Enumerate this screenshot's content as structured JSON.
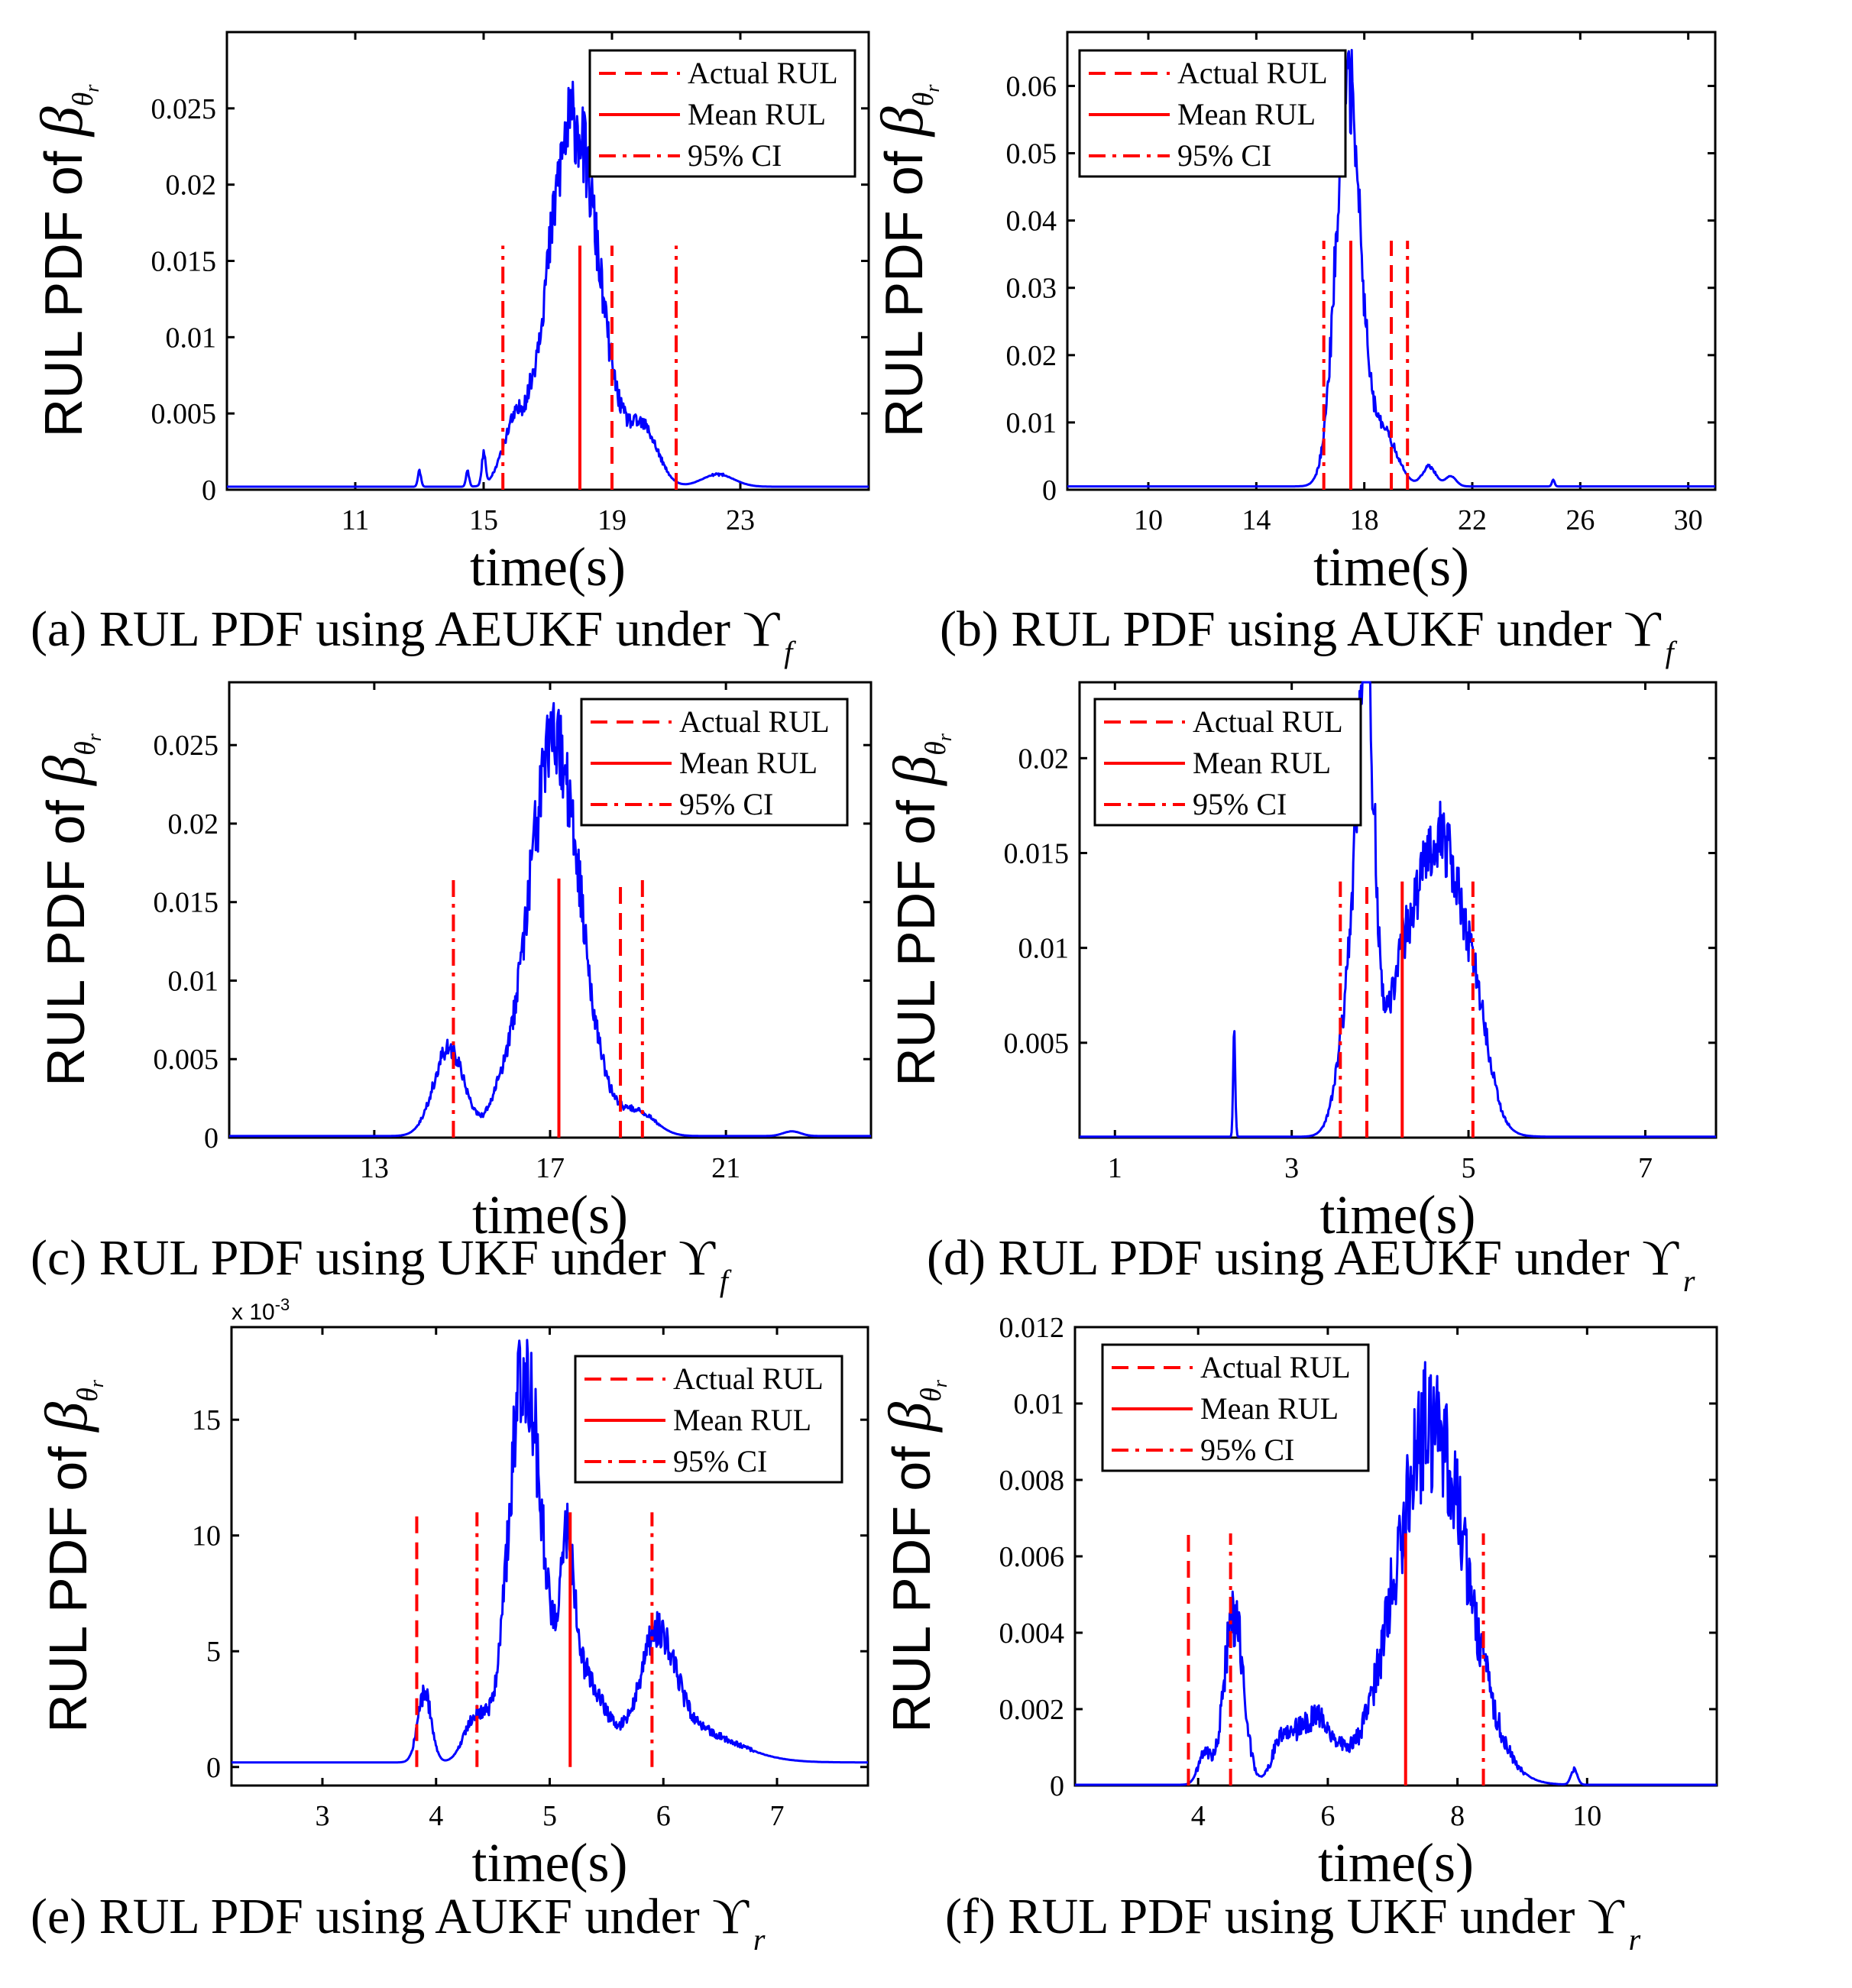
{
  "colors": {
    "pdf": "#0000ff",
    "rul": "#ff0000"
  },
  "legend": {
    "actual": "Actual RUL",
    "mean": "Mean RUL",
    "ci": "95% CI"
  },
  "chart_data": [
    {
      "type": "line",
      "id": "a",
      "caption": "(a) RUL PDF using AEUKF under ϒ",
      "caption_sub": "f",
      "xlabel": "time(s)",
      "ylabel": "RUL PDF of",
      "ylabel_symbol": "β",
      "ylabel_sub": "θ",
      "ylabel_subsub": "r",
      "xlim": [
        7,
        27
      ],
      "ylim": [
        0,
        0.03
      ],
      "xticks": [
        11,
        15,
        19,
        23
      ],
      "xtick_labels": [
        "11",
        "15",
        "19",
        "23"
      ],
      "yticks": [
        0,
        0.005,
        0.01,
        0.015,
        0.02,
        0.025
      ],
      "ytick_labels": [
        "0",
        "0.005",
        "0.01",
        "0.015",
        "0.02",
        "0.025"
      ],
      "multiplier": "",
      "vlines": {
        "actual": [
          19.0
        ],
        "mean": [
          18.0
        ],
        "ci": [
          15.6,
          21.0
        ],
        "height": 0.016
      },
      "pdf": {
        "start": 7,
        "end": 27,
        "baseline": 0.0002,
        "components": [
          [
            17.8,
            0.8,
            0.024
          ],
          [
            20.0,
            0.45,
            0.0035
          ],
          [
            15.9,
            0.35,
            0.003
          ],
          [
            22.3,
            0.5,
            0.0008
          ],
          [
            13.0,
            0.05,
            0.001
          ],
          [
            14.5,
            0.05,
            0.001
          ],
          [
            15.0,
            0.06,
            0.002
          ]
        ],
        "noise": 0.12,
        "seed": 11
      }
    },
    {
      "type": "line",
      "id": "b",
      "caption": "(b) RUL PDF using AUKF under ϒ",
      "caption_sub": "f",
      "xlabel": "time(s)",
      "ylabel": "RUL PDF of",
      "ylabel_symbol": "β",
      "ylabel_sub": "θ",
      "ylabel_subsub": "r",
      "xlim": [
        7,
        31
      ],
      "ylim": [
        0,
        0.068
      ],
      "xticks": [
        10,
        14,
        18,
        22,
        26,
        30
      ],
      "xtick_labels": [
        "10",
        "14",
        "18",
        "22",
        "26",
        "30"
      ],
      "yticks": [
        0,
        0.01,
        0.02,
        0.03,
        0.04,
        0.05,
        0.06
      ],
      "ytick_labels": [
        "0",
        "0.01",
        "0.02",
        "0.03",
        "0.04",
        "0.05",
        "0.06"
      ],
      "multiplier": "",
      "vlines": {
        "actual": [
          19.0
        ],
        "mean": [
          17.5
        ],
        "ci": [
          16.5,
          19.6
        ],
        "height": 0.037
      },
      "pdf": {
        "start": 7,
        "end": 31,
        "baseline": 0.0005,
        "components": [
          [
            17.4,
            0.45,
            0.06
          ],
          [
            18.7,
            0.5,
            0.008
          ],
          [
            20.4,
            0.25,
            0.003
          ],
          [
            21.2,
            0.2,
            0.0015
          ],
          [
            25.0,
            0.05,
            0.001
          ]
        ],
        "noise": 0.12,
        "seed": 22
      }
    },
    {
      "type": "line",
      "id": "c",
      "caption": "(c) RUL PDF using UKF under ϒ",
      "caption_sub": "f",
      "xlabel": "time(s)",
      "ylabel": "RUL PDF of",
      "ylabel_symbol": "β",
      "ylabel_sub": "θ",
      "ylabel_subsub": "r",
      "xlim": [
        9.7,
        24.3
      ],
      "ylim": [
        0,
        0.029
      ],
      "xticks": [
        13,
        17,
        21
      ],
      "xtick_labels": [
        "13",
        "17",
        "21"
      ],
      "yticks": [
        0,
        0.005,
        0.01,
        0.015,
        0.02,
        0.025
      ],
      "ytick_labels": [
        "0",
        "0.005",
        "0.01",
        "0.015",
        "0.02",
        "0.025"
      ],
      "multiplier": "",
      "vlines": {
        "actual": [
          18.6
        ],
        "mean": [
          17.2
        ],
        "ci": [
          14.8,
          19.1
        ],
        "height": 0.0165
      },
      "pdf": {
        "start": 9.7,
        "end": 24.3,
        "baseline": 0.0001,
        "components": [
          [
            17.1,
            0.6,
            0.025
          ],
          [
            14.7,
            0.35,
            0.0055
          ],
          [
            15.8,
            0.2,
            0.001
          ],
          [
            19.0,
            0.4,
            0.0015
          ],
          [
            22.5,
            0.2,
            0.0003
          ]
        ],
        "noise": 0.12,
        "seed": 33
      }
    },
    {
      "type": "line",
      "id": "d",
      "caption": "(d) RUL PDF using AEUKF under ϒ",
      "caption_sub": "r",
      "xlabel": "time(s)",
      "ylabel": "RUL PDF of",
      "ylabel_symbol": "β",
      "ylabel_sub": "θ",
      "ylabel_subsub": "r",
      "xlim": [
        0.6,
        7.8
      ],
      "ylim": [
        0,
        0.024
      ],
      "xticks": [
        1,
        3,
        5,
        7
      ],
      "xtick_labels": [
        "1",
        "3",
        "5",
        "7"
      ],
      "yticks": [
        0.005,
        0.01,
        0.015,
        0.02
      ],
      "ytick_labels": [
        "0.005",
        "0.01",
        "0.015",
        "0.02"
      ],
      "multiplier": "",
      "vlines": {
        "actual": [
          3.85
        ],
        "mean": [
          4.25
        ],
        "ci": [
          3.55,
          5.05
        ],
        "height": 0.0135
      },
      "pdf": {
        "start": 0.6,
        "end": 7.8,
        "baseline": 5e-05,
        "components": [
          [
            3.85,
            0.1,
            0.019
          ],
          [
            4.65,
            0.3,
            0.016
          ],
          [
            3.7,
            0.15,
            0.008
          ],
          [
            4.2,
            0.12,
            0.004
          ],
          [
            2.35,
            0.012,
            0.0055
          ],
          [
            5.1,
            0.15,
            0.003
          ]
        ],
        "noise": 0.12,
        "seed": 44
      }
    },
    {
      "type": "line",
      "id": "e",
      "caption": "(e) RUL PDF using AUKF under ϒ",
      "caption_sub": "r",
      "xlabel": "time(s)",
      "ylabel": "RUL PDF of",
      "ylabel_symbol": "β",
      "ylabel_sub": "θ",
      "ylabel_subsub": "r",
      "xlim": [
        2.2,
        7.8
      ],
      "ylim": [
        -0.0008,
        0.019
      ],
      "xticks": [
        3,
        4,
        5,
        6,
        7
      ],
      "xtick_labels": [
        "3",
        "4",
        "5",
        "6",
        "7"
      ],
      "yticks": [
        0,
        0.005,
        0.01,
        0.015
      ],
      "ytick_labels": [
        "0",
        "5",
        "10",
        "15"
      ],
      "multiplier": "x 10",
      "multiplier_exp": "-3",
      "vlines": {
        "actual": [
          3.83
        ],
        "mean": [
          5.18
        ],
        "ci": [
          4.36,
          5.9
        ],
        "height": 0.011
      },
      "pdf": {
        "start": 2.2,
        "end": 7.8,
        "baseline": 0.0002,
        "components": [
          [
            4.78,
            0.14,
            0.017
          ],
          [
            5.15,
            0.06,
            0.006
          ],
          [
            5.25,
            0.2,
            0.004
          ],
          [
            5.95,
            0.15,
            0.0045
          ],
          [
            6.2,
            0.4,
            0.0015
          ],
          [
            3.9,
            0.06,
            0.003
          ],
          [
            4.35,
            0.1,
            0.002
          ]
        ],
        "noise": 0.15,
        "seed": 55
      }
    },
    {
      "type": "line",
      "id": "f",
      "caption": "(f) RUL PDF using UKF under ϒ",
      "caption_sub": "r",
      "xlabel": "time(s)",
      "ylabel": "RUL PDF of",
      "ylabel_symbol": "β",
      "ylabel_sub": "θ",
      "ylabel_subsub": "r",
      "xlim": [
        2.1,
        12
      ],
      "ylim": [
        0,
        0.012
      ],
      "xticks": [
        4,
        6,
        8,
        10
      ],
      "xtick_labels": [
        "4",
        "6",
        "8",
        "10"
      ],
      "yticks": [
        0,
        0.002,
        0.004,
        0.006,
        0.008,
        0.01,
        0.012
      ],
      "ytick_labels": [
        "0",
        "0.002",
        "0.004",
        "0.006",
        "0.008",
        "0.01",
        "0.012"
      ],
      "multiplier": "",
      "vlines": {
        "actual": [
          3.85
        ],
        "mean": [
          7.2
        ],
        "ci": [
          4.5,
          8.4
        ],
        "height": 0.0066
      },
      "pdf": {
        "start": 2.1,
        "end": 12,
        "baseline": 2e-05,
        "components": [
          [
            7.6,
            0.55,
            0.0095
          ],
          [
            4.55,
            0.15,
            0.0045
          ],
          [
            5.8,
            0.3,
            0.0017
          ],
          [
            5.3,
            0.15,
            0.001
          ],
          [
            4.1,
            0.1,
            0.0008
          ],
          [
            9.8,
            0.05,
            0.0004
          ]
        ],
        "noise": 0.2,
        "seed": 66
      }
    }
  ]
}
